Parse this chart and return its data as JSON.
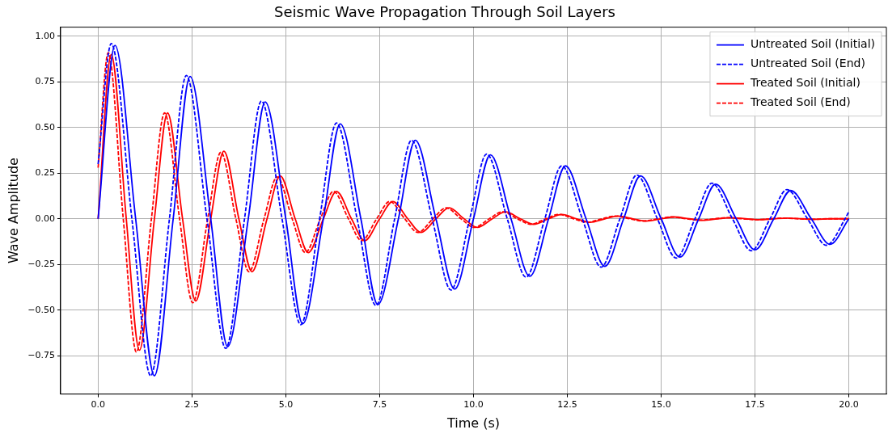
{
  "chart_data": {
    "type": "line",
    "title": "Seismic Wave Propagation Through Soil Layers",
    "xlabel": "Time (s)",
    "ylabel": "Wave Amplitude",
    "xlim": [
      -1,
      21
    ],
    "xticks": [
      {
        "value": 0,
        "label": "0.0"
      },
      {
        "value": 2.5,
        "label": "2.5"
      },
      {
        "value": 5,
        "label": "5.0"
      },
      {
        "value": 7.5,
        "label": "7.5"
      },
      {
        "value": 10,
        "label": "10.0"
      },
      {
        "value": 12.5,
        "label": "12.5"
      },
      {
        "value": 15,
        "label": "15.0"
      },
      {
        "value": 17.5,
        "label": "17.5"
      },
      {
        "value": 20,
        "label": "20.0"
      }
    ],
    "ylim": [
      -0.96,
      1.05
    ],
    "yticks": [
      {
        "value": -0.75,
        "label": "−0.75"
      },
      {
        "value": -0.5,
        "label": "−0.50"
      },
      {
        "value": -0.25,
        "label": "−0.25"
      },
      {
        "value": 0,
        "label": "0.00"
      },
      {
        "value": 0.25,
        "label": "0.25"
      },
      {
        "value": 0.5,
        "label": "0.50"
      },
      {
        "value": 0.75,
        "label": "0.75"
      },
      {
        "value": 1,
        "label": "1.00"
      }
    ],
    "grid": true,
    "legend": "top right",
    "marker": "none",
    "series": [
      {
        "name": "Untreated Soil (Initial)",
        "color": "#0000ff",
        "line_style": "solid",
        "x": [
          0,
          0.45,
          1,
          1.5,
          2,
          2.45,
          3,
          3.45,
          4,
          4.45,
          5,
          5.45,
          6,
          6.45,
          7,
          7.45,
          8,
          8.45,
          9,
          9.5,
          10,
          10.45,
          11,
          11.5,
          12,
          12.45,
          13,
          13.5,
          14,
          14.45,
          15,
          15.5,
          16,
          16.45,
          17,
          17.5,
          18,
          18.45,
          19,
          19.5,
          20
        ],
        "values": [
          0,
          0.95,
          0,
          -0.86,
          0,
          0.78,
          0,
          -0.7,
          0,
          0.64,
          0,
          -0.575,
          0,
          0.52,
          0,
          -0.47,
          0,
          0.43,
          0,
          -0.385,
          0,
          0.35,
          0,
          -0.315,
          0,
          0.29,
          0,
          -0.26,
          0,
          0.235,
          0,
          -0.21,
          0,
          0.19,
          0,
          -0.17,
          0,
          0.155,
          0,
          -0.14,
          0
        ]
      },
      {
        "name": "Untreated Soil (End)",
        "color": "#0000ff",
        "line_style": "dashed",
        "x": [
          0,
          0.35,
          0.9,
          1.4,
          1.9,
          2.35,
          2.9,
          3.4,
          3.9,
          4.35,
          4.9,
          5.4,
          5.9,
          6.35,
          6.9,
          7.4,
          7.9,
          8.35,
          8.9,
          9.4,
          9.9,
          10.35,
          10.9,
          11.4,
          11.9,
          12.35,
          12.9,
          13.4,
          13.9,
          14.35,
          14.9,
          15.4,
          15.9,
          16.35,
          16.9,
          17.4,
          17.9,
          18.35,
          18.9,
          19.4,
          19.9,
          20
        ],
        "values": [
          0.3,
          0.96,
          0,
          -0.86,
          0,
          0.785,
          0,
          -0.71,
          0,
          0.645,
          0,
          -0.58,
          0,
          0.525,
          0,
          -0.475,
          0,
          0.43,
          0,
          -0.39,
          0,
          0.355,
          0,
          -0.32,
          0,
          0.29,
          0,
          -0.265,
          0,
          0.24,
          0,
          -0.215,
          0,
          0.195,
          0,
          -0.175,
          0,
          0.16,
          0,
          -0.145,
          0,
          0.04
        ]
      },
      {
        "name": "Treated Soil (Initial)",
        "color": "#ff0000",
        "line_style": "solid",
        "x": [
          0,
          0.35,
          0.75,
          1.1,
          1.5,
          1.85,
          2.25,
          2.6,
          3,
          3.35,
          3.75,
          4.1,
          4.5,
          4.85,
          5.25,
          5.6,
          6,
          6.35,
          6.75,
          7.1,
          7.5,
          7.85,
          8.25,
          8.6,
          9,
          9.35,
          9.75,
          10.1,
          10.5,
          10.85,
          11.25,
          11.6,
          12,
          12.35,
          12.75,
          13.1,
          13.5,
          13.85,
          14.25,
          14.6,
          15,
          15.35,
          15.75,
          16.1,
          16.5,
          16.85,
          17.25,
          17.6,
          18,
          18.35,
          18.75,
          19.1,
          19.5,
          20
        ],
        "values": [
          0,
          0.9,
          0,
          -0.72,
          0,
          0.58,
          0,
          -0.45,
          0,
          0.37,
          0,
          -0.29,
          0,
          0.235,
          0,
          -0.185,
          0,
          0.15,
          0,
          -0.12,
          0,
          0.095,
          0,
          -0.075,
          0,
          0.06,
          0,
          -0.047,
          0,
          0.038,
          0,
          -0.03,
          0,
          0.024,
          0,
          -0.019,
          0,
          0.015,
          0,
          -0.012,
          0,
          0.01,
          0,
          -0.008,
          0,
          0.006,
          0,
          -0.005,
          0,
          0.004,
          0,
          -0.003,
          0,
          0
        ]
      },
      {
        "name": "Treated Soil (End)",
        "color": "#ff0000",
        "line_style": "dashed",
        "x": [
          0,
          0.27,
          0.67,
          1.02,
          1.42,
          1.77,
          2.17,
          2.52,
          2.92,
          3.27,
          3.67,
          4.02,
          4.42,
          4.77,
          5.17,
          5.52,
          5.92,
          6.27,
          6.67,
          7.02,
          7.42,
          7.77,
          8.17,
          8.52,
          8.92,
          9.27,
          9.67,
          10.02,
          10.42,
          10.77,
          11.17,
          11.52,
          11.92,
          12.27,
          12.67,
          13.02,
          13.42,
          13.77,
          14.17,
          14.52,
          14.92,
          15.27,
          15.67,
          16.02,
          16.42,
          16.77,
          17.17,
          17.52,
          17.92,
          18.27,
          18.67,
          19.02,
          19.42,
          20
        ],
        "values": [
          0.28,
          0.91,
          0,
          -0.73,
          0,
          0.58,
          0,
          -0.46,
          0,
          0.365,
          0,
          -0.29,
          0,
          0.23,
          0,
          -0.185,
          0,
          0.15,
          0,
          -0.12,
          0,
          0.095,
          0,
          -0.075,
          0,
          0.06,
          0,
          -0.047,
          0,
          0.038,
          0,
          -0.03,
          0,
          0.024,
          0,
          -0.019,
          0,
          0.015,
          0,
          -0.012,
          0,
          0.01,
          0,
          -0.008,
          0,
          0.006,
          0,
          -0.005,
          0,
          0.004,
          0,
          -0.003,
          0,
          0
        ]
      }
    ]
  }
}
